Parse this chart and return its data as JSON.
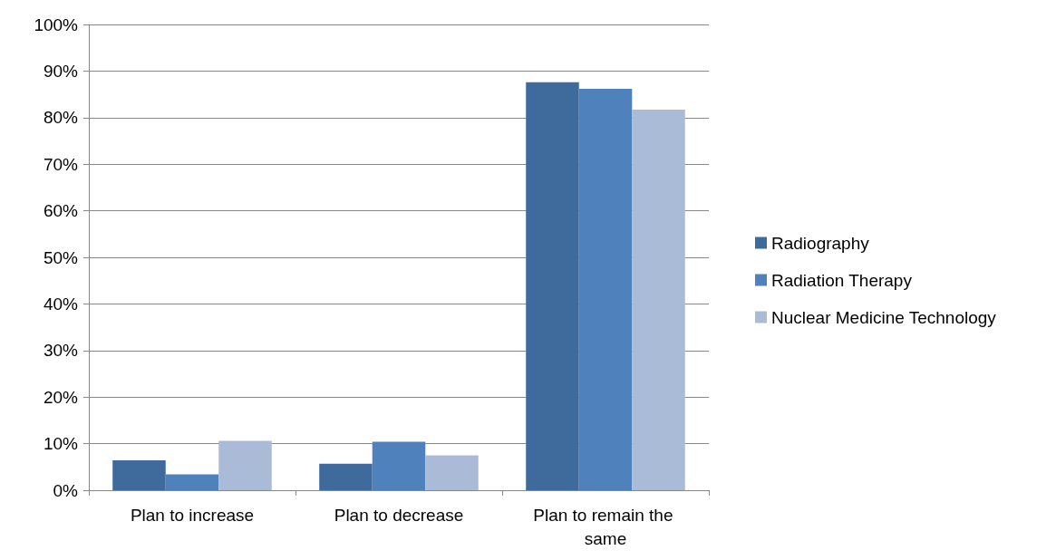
{
  "chart_data": {
    "type": "bar",
    "categories": [
      "Plan to increase",
      "Plan to decrease",
      "Plan to remain the same"
    ],
    "series": [
      {
        "name": "Radiography",
        "color": "#3f6a9c",
        "values": [
          6.4,
          5.7,
          87.6
        ]
      },
      {
        "name": "Radiation Therapy",
        "color": "#4f81bd",
        "values": [
          3.4,
          10.4,
          86.2
        ]
      },
      {
        "name": "Nuclear Medicine Technology",
        "color": "#aabbd8",
        "values": [
          10.6,
          7.5,
          81.7
        ]
      }
    ],
    "ylim": [
      0,
      100
    ],
    "yticks": [
      {
        "value": 0,
        "label": "0%"
      },
      {
        "value": 10,
        "label": "10%"
      },
      {
        "value": 20,
        "label": "20%"
      },
      {
        "value": 30,
        "label": "30%"
      },
      {
        "value": 40,
        "label": "40%"
      },
      {
        "value": 50,
        "label": "50%"
      },
      {
        "value": 60,
        "label": "60%"
      },
      {
        "value": 70,
        "label": "70%"
      },
      {
        "value": 80,
        "label": "80%"
      },
      {
        "value": 90,
        "label": "90%"
      },
      {
        "value": 100,
        "label": "100%"
      }
    ],
    "grid": "y",
    "legend": "right"
  }
}
